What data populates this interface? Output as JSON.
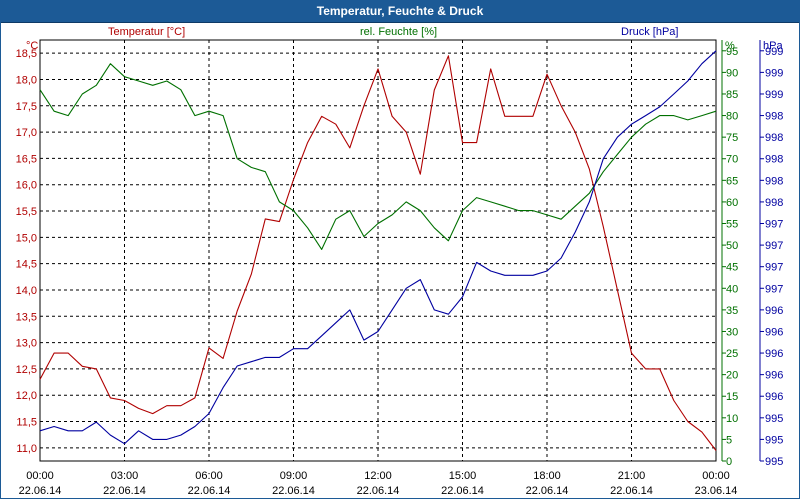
{
  "window": {
    "title": "Temperatur, Feuchte & Druck"
  },
  "colors": {
    "temperature": "#b00000",
    "humidity": "#007000",
    "pressure": "#0000a0",
    "grid": "#000000",
    "title_bar": "#1c5a96"
  },
  "chart_data": {
    "type": "line",
    "title": "Temperatur, Feuchte & Druck",
    "xlabel": "",
    "x": [
      "00:00",
      "00:30",
      "01:00",
      "01:30",
      "02:00",
      "02:30",
      "03:00",
      "03:30",
      "04:00",
      "04:30",
      "05:00",
      "05:30",
      "06:00",
      "06:30",
      "07:00",
      "07:30",
      "08:00",
      "08:30",
      "09:00",
      "09:30",
      "10:00",
      "10:30",
      "11:00",
      "11:30",
      "12:00",
      "12:30",
      "13:00",
      "13:30",
      "14:00",
      "14:30",
      "15:00",
      "15:30",
      "16:00",
      "16:30",
      "17:00",
      "17:30",
      "18:00",
      "18:30",
      "19:00",
      "19:30",
      "20:00",
      "20:30",
      "21:00",
      "21:30",
      "22:00",
      "22:30",
      "23:00",
      "23:30",
      "24:00"
    ],
    "x_ticks": [
      {
        "time": "00:00",
        "date": "22.06.14"
      },
      {
        "time": "03:00",
        "date": "22.06.14"
      },
      {
        "time": "06:00",
        "date": "22.06.14"
      },
      {
        "time": "09:00",
        "date": "22.06.14"
      },
      {
        "time": "12:00",
        "date": "22.06.14"
      },
      {
        "time": "15:00",
        "date": "22.06.14"
      },
      {
        "time": "18:00",
        "date": "22.06.14"
      },
      {
        "time": "21:00",
        "date": "22.06.14"
      },
      {
        "time": "00:00",
        "date": "23.06.14"
      }
    ],
    "axes": {
      "temperature": {
        "label": "Temperatur [°C]",
        "unit": "°C",
        "ylim": [
          10.75,
          18.75
        ],
        "ticks": [
          "11,0",
          "11,5",
          "12,0",
          "12,5",
          "13,0",
          "13,5",
          "14,0",
          "14,5",
          "15,0",
          "15,5",
          "16,0",
          "16,5",
          "17,0",
          "17,5",
          "18,0",
          "18,5"
        ]
      },
      "humidity": {
        "label": "rel. Feuchte [%]",
        "unit": "%",
        "ylim": [
          0,
          97.5
        ],
        "ticks": [
          "0",
          "5",
          "10",
          "15",
          "20",
          "25",
          "30",
          "35",
          "40",
          "45",
          "50",
          "55",
          "60",
          "65",
          "70",
          "75",
          "80",
          "85",
          "90",
          "95"
        ]
      },
      "pressure": {
        "label": "Druck [hPa]",
        "unit": "hPa",
        "ticks": [
          "995",
          "995",
          "995",
          "996",
          "996",
          "996",
          "996",
          "996",
          "997",
          "997",
          "997",
          "997",
          "998",
          "998",
          "998",
          "998",
          "998",
          "999",
          "999",
          "999"
        ]
      }
    },
    "series": [
      {
        "name": "Temperatur",
        "axis": "temperature",
        "color": "#b00000",
        "values": [
          12.3,
          12.8,
          12.8,
          12.55,
          12.5,
          11.95,
          11.9,
          11.75,
          11.65,
          11.8,
          11.8,
          11.95,
          12.9,
          12.7,
          13.6,
          14.3,
          15.35,
          15.3,
          16.1,
          16.8,
          17.3,
          17.15,
          16.7,
          17.5,
          18.2,
          17.3,
          17.0,
          16.2,
          17.8,
          18.45,
          16.8,
          16.8,
          18.2,
          17.3,
          17.3,
          17.3,
          18.1,
          17.5,
          17.0,
          16.3,
          15.2,
          14.0,
          12.8,
          12.5,
          12.5,
          11.9,
          11.5,
          11.3,
          10.95
        ]
      },
      {
        "name": "rel. Feuchte",
        "axis": "humidity",
        "color": "#007000",
        "values": [
          86,
          81,
          80,
          85,
          87,
          92,
          89,
          88,
          87,
          88,
          86,
          80,
          81,
          80,
          70,
          68,
          67,
          60,
          58,
          54,
          49,
          56,
          58,
          52,
          55,
          57,
          60,
          58,
          54,
          51,
          58,
          61,
          60,
          59,
          58,
          58,
          57,
          56,
          59,
          62,
          67,
          71,
          75,
          78,
          80,
          80,
          79,
          80,
          81
        ]
      },
      {
        "name": "Druck",
        "axis": "pressure",
        "color": "#0000a0",
        "values_on_ruler_scale": [
          7,
          8,
          7,
          7,
          9,
          6,
          4,
          7,
          5,
          5,
          6,
          8,
          11,
          17,
          22,
          23,
          24,
          24,
          26,
          26,
          29,
          32,
          35,
          28,
          30,
          35,
          40,
          42,
          35,
          34,
          38,
          46,
          44,
          43,
          43,
          43,
          44,
          47,
          53,
          60,
          70,
          75,
          78,
          80,
          82,
          85,
          88,
          92,
          95
        ]
      }
    ]
  }
}
